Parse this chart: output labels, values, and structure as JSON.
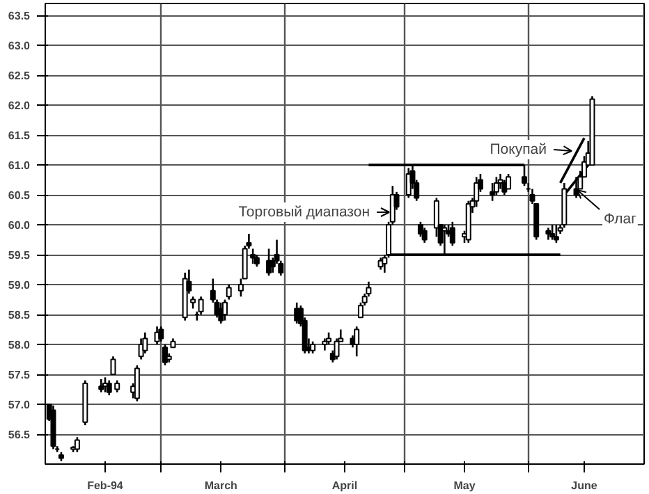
{
  "chart_data": {
    "type": "candlestick",
    "color": "#000000",
    "x": [
      "1994-02-01",
      "1994-02-02",
      "1994-02-03",
      "1994-02-04",
      "1994-02-07",
      "1994-02-08",
      "1994-02-10",
      "1994-02-14",
      "1994-02-15",
      "1994-02-16",
      "1994-02-17",
      "1994-02-18",
      "1994-02-22",
      "1994-02-23",
      "1994-02-24",
      "1994-02-25",
      "1994-02-28",
      "1994-03-01",
      "1994-03-02",
      "1994-03-03",
      "1994-03-04",
      "1994-03-07",
      "1994-03-08",
      "1994-03-09",
      "1994-03-10",
      "1994-03-11",
      "1994-03-14",
      "1994-03-15",
      "1994-03-16",
      "1994-03-17",
      "1994-03-18",
      "1994-03-21",
      "1994-03-22",
      "1994-03-23",
      "1994-03-24",
      "1994-03-25",
      "1994-03-28",
      "1994-03-29",
      "1994-03-30",
      "1994-03-31",
      "1994-04-04",
      "1994-04-05",
      "1994-04-06",
      "1994-04-07",
      "1994-04-08",
      "1994-04-11",
      "1994-04-12",
      "1994-04-13",
      "1994-04-14",
      "1994-04-15",
      "1994-04-18",
      "1994-04-19",
      "1994-04-20",
      "1994-04-21",
      "1994-04-22",
      "1994-04-25",
      "1994-04-26",
      "1994-04-27",
      "1994-04-28",
      "1994-04-29",
      "1994-05-02",
      "1994-05-03",
      "1994-05-04",
      "1994-05-05",
      "1994-05-06",
      "1994-05-09",
      "1994-05-10",
      "1994-05-11",
      "1994-05-12",
      "1994-05-13",
      "1994-05-16",
      "1994-05-17",
      "1994-05-18",
      "1994-05-19",
      "1994-05-20",
      "1994-05-23",
      "1994-05-24",
      "1994-05-25",
      "1994-05-26",
      "1994-05-27",
      "1994-05-31",
      "1994-06-01",
      "1994-06-02",
      "1994-06-03",
      "1994-06-06",
      "1994-06-07",
      "1994-06-08",
      "1994-06-09",
      "1994-06-10",
      "1994-06-13",
      "1994-06-14",
      "1994-06-15",
      "1994-06-16",
      "1994-06-17"
    ],
    "ohlc": [
      [
        57.0,
        57.0,
        56.72,
        56.75
      ],
      [
        56.9,
        56.98,
        56.25,
        56.3
      ],
      [
        56.25,
        56.3,
        56.2,
        56.25
      ],
      [
        56.15,
        56.2,
        56.05,
        56.1
      ],
      [
        56.25,
        56.3,
        56.2,
        56.28
      ],
      [
        56.25,
        56.45,
        56.2,
        56.4
      ],
      [
        56.7,
        57.4,
        56.65,
        57.35
      ],
      [
        57.3,
        57.42,
        57.2,
        57.25
      ],
      [
        57.3,
        57.45,
        57.2,
        57.35
      ],
      [
        57.35,
        57.4,
        57.15,
        57.2
      ],
      [
        57.5,
        57.8,
        57.5,
        57.75
      ],
      [
        57.25,
        57.4,
        57.2,
        57.35
      ],
      [
        57.2,
        57.35,
        57.1,
        57.3
      ],
      [
        57.1,
        57.65,
        57.05,
        57.6
      ],
      [
        57.8,
        58.1,
        57.75,
        58.0
      ],
      [
        57.9,
        58.2,
        57.85,
        58.1
      ],
      [
        58.05,
        58.3,
        58.0,
        58.2
      ],
      [
        58.25,
        58.3,
        58.05,
        58.1
      ],
      [
        57.95,
        58.0,
        57.65,
        57.7
      ],
      [
        57.75,
        57.85,
        57.7,
        57.8
      ],
      [
        57.95,
        58.1,
        57.95,
        58.05
      ],
      [
        58.45,
        59.2,
        58.4,
        59.1
      ],
      [
        59.05,
        59.25,
        58.85,
        58.9
      ],
      [
        58.7,
        58.8,
        58.6,
        58.75
      ],
      [
        58.5,
        58.55,
        58.4,
        58.5
      ],
      [
        58.55,
        58.8,
        58.5,
        58.75
      ],
      [
        58.9,
        59.1,
        58.7,
        58.75
      ],
      [
        58.7,
        58.75,
        58.45,
        58.5
      ],
      [
        58.6,
        58.7,
        58.35,
        58.4
      ],
      [
        58.5,
        58.75,
        58.4,
        58.7
      ],
      [
        58.8,
        59.0,
        58.75,
        58.95
      ],
      [
        58.9,
        59.1,
        58.8,
        59.0
      ],
      [
        59.1,
        59.65,
        59.1,
        59.6
      ],
      [
        59.7,
        59.85,
        59.6,
        59.65
      ],
      [
        59.5,
        59.6,
        59.35,
        59.45
      ],
      [
        59.45,
        59.5,
        59.3,
        59.35
      ],
      [
        59.4,
        59.6,
        59.15,
        59.2
      ],
      [
        59.4,
        59.45,
        59.2,
        59.3
      ],
      [
        59.5,
        59.75,
        59.35,
        59.4
      ],
      [
        59.35,
        59.4,
        59.15,
        59.2
      ],
      [
        58.6,
        58.7,
        58.35,
        58.4
      ],
      [
        58.6,
        58.65,
        58.3,
        58.35
      ],
      [
        58.4,
        58.45,
        57.85,
        57.9
      ],
      [
        57.95,
        58.1,
        57.85,
        57.9
      ],
      [
        57.9,
        58.05,
        57.85,
        58.0
      ],
      [
        58.0,
        58.1,
        57.9,
        58.05
      ],
      [
        58.05,
        58.2,
        58.0,
        58.1
      ],
      [
        57.85,
        57.9,
        57.7,
        57.75
      ],
      [
        57.8,
        58.1,
        57.75,
        58.05
      ],
      [
        58.05,
        58.25,
        58.05,
        58.1
      ],
      [
        58.1,
        58.15,
        57.95,
        58.0
      ],
      [
        58.0,
        58.3,
        57.8,
        58.25
      ],
      [
        58.45,
        58.7,
        58.45,
        58.65
      ],
      [
        58.7,
        58.85,
        58.65,
        58.8
      ],
      [
        58.85,
        59.05,
        58.8,
        58.95
      ],
      [
        59.3,
        59.45,
        59.25,
        59.4
      ],
      [
        59.35,
        59.5,
        59.2,
        59.45
      ],
      [
        59.5,
        60.05,
        59.45,
        60.0
      ],
      [
        60.05,
        60.65,
        60.0,
        60.5
      ],
      [
        60.5,
        60.55,
        60.25,
        60.3
      ],
      [
        60.5,
        60.95,
        60.45,
        60.85
      ],
      [
        60.9,
        61.0,
        60.6,
        60.7
      ],
      [
        60.7,
        60.75,
        60.4,
        60.45
      ],
      [
        60.0,
        60.05,
        59.8,
        59.85
      ],
      [
        59.9,
        59.95,
        59.7,
        59.75
      ],
      [
        59.95,
        60.45,
        59.8,
        60.4
      ],
      [
        60.0,
        60.0,
        59.65,
        59.7
      ],
      [
        59.9,
        60.0,
        59.5,
        59.95
      ],
      [
        59.9,
        60.0,
        59.8,
        59.85
      ],
      [
        59.95,
        60.05,
        59.65,
        59.7
      ],
      [
        59.8,
        59.9,
        59.7,
        59.85
      ],
      [
        59.75,
        60.4,
        59.7,
        60.35
      ],
      [
        60.3,
        60.45,
        60.2,
        60.4
      ],
      [
        60.4,
        60.8,
        60.3,
        60.7
      ],
      [
        60.75,
        60.85,
        60.55,
        60.6
      ],
      [
        60.55,
        60.7,
        60.4,
        60.5
      ],
      [
        60.55,
        60.8,
        60.5,
        60.7
      ],
      [
        60.7,
        60.85,
        60.6,
        60.75
      ],
      [
        60.7,
        60.75,
        60.5,
        60.55
      ],
      [
        60.6,
        60.85,
        60.6,
        60.8
      ],
      [
        60.8,
        61.0,
        60.65,
        60.7
      ],
      [
        60.6,
        60.7,
        60.55,
        60.6
      ],
      [
        60.5,
        60.6,
        60.35,
        60.4
      ],
      [
        60.35,
        60.35,
        59.75,
        59.8
      ],
      [
        59.9,
        59.95,
        59.75,
        59.85
      ],
      [
        59.85,
        60.0,
        59.75,
        59.8
      ],
      [
        59.8,
        60.0,
        59.7,
        59.75
      ],
      [
        59.9,
        60.0,
        59.85,
        59.95
      ],
      [
        60.0,
        60.7,
        59.95,
        60.6
      ],
      [
        60.6,
        60.8,
        60.45,
        60.5
      ],
      [
        60.6,
        60.9,
        60.6,
        60.8
      ],
      [
        60.8,
        61.15,
        60.8,
        61.05
      ],
      [
        61.0,
        61.4,
        61.0,
        61.2
      ],
      [
        61.0,
        62.15,
        61.0,
        62.1
      ]
    ],
    "series": [
      {
        "type": "line",
        "color": "#000000",
        "x": [
          "1994-04-22",
          "1994-05-31"
        ],
        "values": [
          61.0,
          61.0
        ]
      },
      {
        "type": "line",
        "color": "#000000",
        "x": [
          "1994-04-27",
          "1994-06-09"
        ],
        "values": [
          59.5,
          59.5
        ]
      },
      {
        "type": "line",
        "color": "#000000",
        "x": [
          "1994-06-09",
          "1994-06-15"
        ],
        "values": [
          60.7,
          61.45
        ]
      },
      {
        "type": "line",
        "color": "#000000",
        "x": [
          "1994-06-10",
          "1994-06-16"
        ],
        "values": [
          60.5,
          61.0
        ]
      }
    ],
    "xlim": [
      "1994-01-31",
      "1994-06-30"
    ],
    "xticks": [
      {
        "value": "1994-02-15",
        "label": "Feb-94"
      },
      {
        "value": "1994-03-01",
        "label": null
      },
      {
        "value": "1994-03-16",
        "label": "March"
      },
      {
        "value": "1994-04-01",
        "label": null
      },
      {
        "value": "1994-04-16",
        "label": "April"
      },
      {
        "value": "1994-05-01",
        "label": null
      },
      {
        "value": "1994-05-16",
        "label": "May"
      },
      {
        "value": "1994-06-01",
        "label": null
      },
      {
        "value": "1994-06-15",
        "label": "June"
      }
    ],
    "ylim": [
      56.0,
      63.7
    ],
    "yticks": [
      {
        "value": 56.5,
        "label": "56.5"
      },
      {
        "value": 57.0,
        "label": "57.0"
      },
      {
        "value": 57.5,
        "label": "57.5"
      },
      {
        "value": 58.0,
        "label": "58.0"
      },
      {
        "value": 58.5,
        "label": "58.5"
      },
      {
        "value": 59.0,
        "label": "59.0"
      },
      {
        "value": 59.5,
        "label": "59.5"
      },
      {
        "value": 60.0,
        "label": "60.0"
      },
      {
        "value": 60.5,
        "label": "60.5"
      },
      {
        "value": 61.0,
        "label": "61.0"
      },
      {
        "value": 61.5,
        "label": "61.5"
      },
      {
        "value": 62.0,
        "label": "62.0"
      },
      {
        "value": 62.5,
        "label": "62.5"
      },
      {
        "value": 63.0,
        "label": "63.0"
      },
      {
        "value": 63.5,
        "label": "63.5"
      }
    ],
    "grid": true,
    "annotations": [
      "Торговый диапазон",
      "Покупай",
      "Флаг"
    ]
  }
}
